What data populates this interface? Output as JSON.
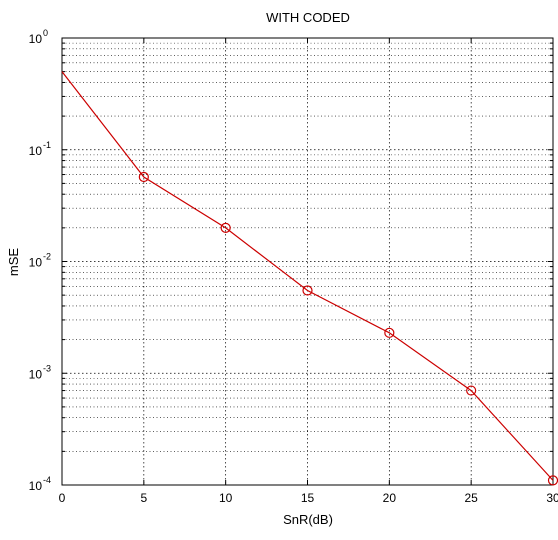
{
  "chart_data": {
    "type": "line",
    "title": "WITH CODED",
    "xlabel": "SnR(dB)",
    "ylabel": "mSE",
    "xlim": [
      0,
      30
    ],
    "ylim": [
      0.0001,
      1
    ],
    "yscale": "log",
    "grid": true,
    "x_ticks": [
      "0",
      "5",
      "10",
      "15",
      "20",
      "25",
      "30"
    ],
    "y_ticks": [
      {
        "base": "10",
        "exp": "0"
      },
      {
        "base": "10",
        "exp": "-1"
      },
      {
        "base": "10",
        "exp": "-2"
      },
      {
        "base": "10",
        "exp": "-3"
      },
      {
        "base": "10",
        "exp": "-4"
      }
    ],
    "x": [
      0,
      5,
      10,
      15,
      20,
      25,
      30
    ],
    "series": [
      {
        "values": [
          0.5,
          0.057,
          0.02,
          0.0055,
          0.0023,
          0.0007,
          0.00011
        ],
        "markers": [
          false,
          true,
          true,
          true,
          true,
          true,
          true
        ],
        "color": "#cc0000",
        "marker": "circle"
      }
    ]
  }
}
